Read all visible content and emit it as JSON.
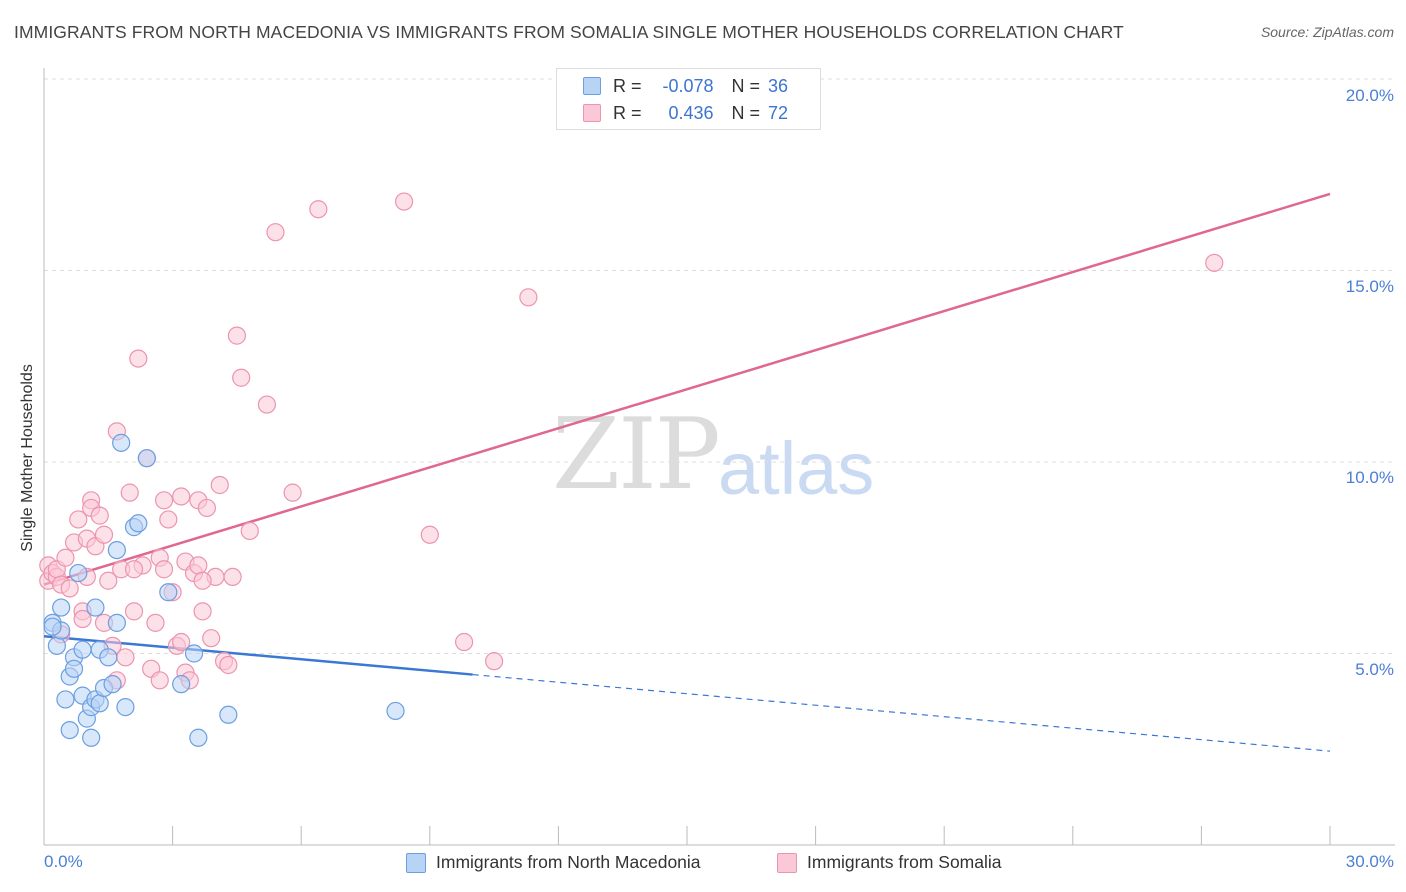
{
  "header": {
    "title": "IMMIGRANTS FROM NORTH MACEDONIA VS IMMIGRANTS FROM SOMALIA SINGLE MOTHER HOUSEHOLDS CORRELATION CHART",
    "source": "Source: ZipAtlas.com"
  },
  "watermark": {
    "zip": "ZIP",
    "atlas": "atlas"
  },
  "legend": {
    "r_label": "R =",
    "n_label": "N =",
    "rows": [
      {
        "r": "-0.078",
        "n": "36"
      },
      {
        "r": "0.436",
        "n": "72"
      }
    ]
  },
  "colors": {
    "macedonia_fill": "#b8d4f5",
    "macedonia_stroke": "#6b9fe0",
    "macedonia_line": "#3a78d4",
    "somalia_fill": "#fbc8d7",
    "somalia_stroke": "#ec94b0",
    "somalia_line": "#e0678f",
    "grid": "#dddddd",
    "tick_text": "#4a7fd4"
  },
  "chart_data": {
    "type": "scatter",
    "title": "IMMIGRANTS FROM NORTH MACEDONIA VS IMMIGRANTS FROM SOMALIA SINGLE MOTHER HOUSEHOLDS CORRELATION CHART",
    "xlabel": "",
    "ylabel": "Single Mother Households",
    "xlim": [
      0,
      30
    ],
    "ylim": [
      0,
      20
    ],
    "x_tick_labels": [
      "0.0%",
      "30.0%"
    ],
    "y_ticks": [
      5,
      10,
      15,
      20
    ],
    "y_tick_labels": [
      "5.0%",
      "10.0%",
      "15.0%",
      "20.0%"
    ],
    "series": [
      {
        "name": "Immigrants from North Macedonia",
        "r": -0.078,
        "n": 36,
        "trend": {
          "x0": 0,
          "y0": 5.45,
          "x1": 30,
          "y1": 2.45,
          "solid_until_x": 10
        },
        "points": [
          [
            0.2,
            5.8
          ],
          [
            0.3,
            5.2
          ],
          [
            0.4,
            5.6
          ],
          [
            0.4,
            6.2
          ],
          [
            0.5,
            3.8
          ],
          [
            0.6,
            3.0
          ],
          [
            0.6,
            4.4
          ],
          [
            0.7,
            4.9
          ],
          [
            0.7,
            4.6
          ],
          [
            0.8,
            7.1
          ],
          [
            0.9,
            5.1
          ],
          [
            0.9,
            3.9
          ],
          [
            1.0,
            3.3
          ],
          [
            1.1,
            2.8
          ],
          [
            1.1,
            3.6
          ],
          [
            1.2,
            6.2
          ],
          [
            1.2,
            3.8
          ],
          [
            1.3,
            3.7
          ],
          [
            1.3,
            5.1
          ],
          [
            1.4,
            4.1
          ],
          [
            1.5,
            4.9
          ],
          [
            1.7,
            7.7
          ],
          [
            1.7,
            5.8
          ],
          [
            1.8,
            10.5
          ],
          [
            1.9,
            3.6
          ],
          [
            2.1,
            8.3
          ],
          [
            2.2,
            8.4
          ],
          [
            2.4,
            10.1
          ],
          [
            2.9,
            6.6
          ],
          [
            3.2,
            4.2
          ],
          [
            3.5,
            5.0
          ],
          [
            3.6,
            2.8
          ],
          [
            4.3,
            3.4
          ],
          [
            8.2,
            3.5
          ],
          [
            0.2,
            5.7
          ],
          [
            1.6,
            4.2
          ]
        ]
      },
      {
        "name": "Immigrants from Somalia",
        "r": 0.436,
        "n": 72,
        "trend": {
          "x0": 0,
          "y0": 6.8,
          "x1": 30,
          "y1": 17.0
        },
        "points": [
          [
            0.1,
            6.9
          ],
          [
            0.1,
            7.3
          ],
          [
            0.2,
            7.1
          ],
          [
            0.3,
            7.0
          ],
          [
            0.3,
            7.2
          ],
          [
            0.4,
            6.8
          ],
          [
            0.4,
            5.5
          ],
          [
            0.5,
            7.5
          ],
          [
            0.6,
            6.7
          ],
          [
            0.7,
            7.9
          ],
          [
            0.8,
            8.5
          ],
          [
            0.9,
            6.1
          ],
          [
            1.0,
            7.0
          ],
          [
            1.0,
            8.0
          ],
          [
            1.1,
            9.0
          ],
          [
            1.1,
            8.8
          ],
          [
            1.2,
            7.8
          ],
          [
            1.3,
            8.6
          ],
          [
            1.4,
            8.1
          ],
          [
            1.4,
            5.8
          ],
          [
            1.5,
            6.9
          ],
          [
            1.6,
            5.2
          ],
          [
            1.7,
            4.3
          ],
          [
            1.7,
            10.8
          ],
          [
            1.8,
            7.2
          ],
          [
            1.9,
            4.9
          ],
          [
            2.0,
            9.2
          ],
          [
            2.1,
            6.1
          ],
          [
            2.2,
            12.7
          ],
          [
            2.3,
            7.3
          ],
          [
            2.4,
            10.1
          ],
          [
            2.5,
            4.6
          ],
          [
            2.6,
            5.8
          ],
          [
            2.7,
            4.3
          ],
          [
            2.7,
            7.5
          ],
          [
            2.8,
            7.2
          ],
          [
            2.8,
            9.0
          ],
          [
            2.9,
            8.5
          ],
          [
            3.0,
            6.6
          ],
          [
            3.1,
            5.2
          ],
          [
            3.2,
            5.3
          ],
          [
            3.2,
            9.1
          ],
          [
            3.3,
            4.5
          ],
          [
            3.3,
            7.4
          ],
          [
            3.4,
            4.3
          ],
          [
            3.5,
            7.1
          ],
          [
            3.6,
            7.3
          ],
          [
            3.6,
            9.0
          ],
          [
            3.7,
            6.1
          ],
          [
            3.8,
            8.8
          ],
          [
            3.9,
            5.4
          ],
          [
            4.0,
            7.0
          ],
          [
            4.1,
            9.4
          ],
          [
            4.2,
            4.8
          ],
          [
            4.3,
            4.7
          ],
          [
            4.4,
            7.0
          ],
          [
            4.5,
            13.3
          ],
          [
            4.6,
            12.2
          ],
          [
            4.8,
            8.2
          ],
          [
            5.2,
            11.5
          ],
          [
            5.4,
            16.0
          ],
          [
            5.8,
            9.2
          ],
          [
            6.4,
            16.6
          ],
          [
            8.4,
            16.8
          ],
          [
            9.0,
            8.1
          ],
          [
            9.8,
            5.3
          ],
          [
            10.5,
            4.8
          ],
          [
            11.3,
            14.3
          ],
          [
            27.3,
            15.2
          ],
          [
            3.7,
            6.9
          ],
          [
            2.1,
            7.2
          ],
          [
            0.9,
            5.9
          ]
        ]
      }
    ]
  }
}
